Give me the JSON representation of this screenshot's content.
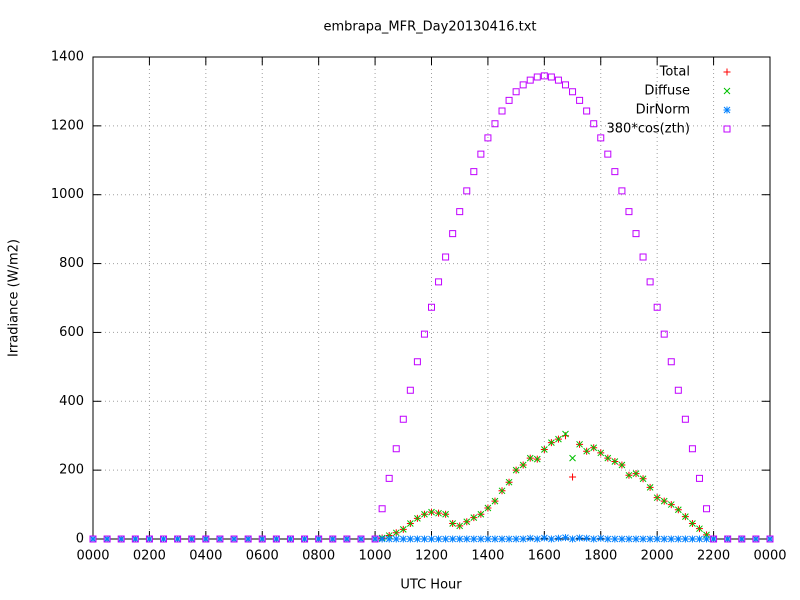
{
  "chart_data": {
    "type": "scatter",
    "title": "embrapa_MFR_Day20130416.txt",
    "x_label": "UTC Hour",
    "y_label": "Irradiance (W/m2)",
    "x": [
      0,
      0.5,
      1,
      1.5,
      2,
      2.5,
      3,
      3.5,
      4,
      4.5,
      5,
      5.5,
      6,
      6.5,
      7,
      7.5,
      8,
      8.5,
      9,
      9.5,
      10,
      10.25,
      10.5,
      10.75,
      11,
      11.25,
      11.5,
      11.75,
      12,
      12.25,
      12.5,
      12.75,
      13,
      13.25,
      13.5,
      13.75,
      14,
      14.25,
      14.5,
      14.75,
      15,
      15.25,
      15.5,
      15.75,
      16,
      16.25,
      16.5,
      16.75,
      17,
      17.25,
      17.5,
      17.75,
      18,
      18.25,
      18.5,
      18.75,
      19,
      19.25,
      19.5,
      19.75,
      20,
      20.25,
      20.5,
      20.75,
      21,
      21.25,
      21.5,
      21.75,
      22,
      22.5,
      23,
      23.5,
      24
    ],
    "series": [
      {
        "name": "Total",
        "color": "#ff0000",
        "marker": "plus",
        "values": [
          0,
          0,
          0,
          0,
          0,
          0,
          0,
          0,
          0,
          0,
          0,
          0,
          0,
          0,
          0,
          0,
          0,
          0,
          0,
          0,
          0,
          3,
          10,
          18,
          28,
          45,
          60,
          72,
          78,
          75,
          72,
          45,
          38,
          50,
          62,
          72,
          90,
          110,
          140,
          165,
          200,
          215,
          235,
          232,
          260,
          280,
          290,
          300,
          180,
          275,
          255,
          265,
          250,
          235,
          225,
          215,
          185,
          190,
          175,
          150,
          120,
          110,
          100,
          85,
          65,
          45,
          30,
          12,
          0,
          0,
          0,
          0,
          0
        ]
      },
      {
        "name": "Diffuse",
        "color": "#00c000",
        "marker": "cross",
        "values": [
          0,
          0,
          0,
          0,
          0,
          0,
          0,
          0,
          0,
          0,
          0,
          0,
          0,
          0,
          0,
          0,
          0,
          0,
          0,
          0,
          0,
          3,
          10,
          18,
          28,
          45,
          60,
          72,
          78,
          75,
          72,
          45,
          38,
          50,
          62,
          72,
          90,
          110,
          140,
          165,
          200,
          215,
          235,
          232,
          260,
          280,
          290,
          305,
          235,
          275,
          255,
          265,
          250,
          235,
          225,
          215,
          185,
          190,
          175,
          150,
          120,
          110,
          100,
          85,
          65,
          45,
          30,
          12,
          0,
          0,
          0,
          0,
          0
        ]
      },
      {
        "name": "DirNorm",
        "color": "#0080ff",
        "marker": "star",
        "values": [
          0,
          0,
          0,
          0,
          0,
          0,
          0,
          0,
          0,
          0,
          0,
          0,
          0,
          0,
          0,
          0,
          0,
          0,
          0,
          0,
          0,
          0,
          0,
          0,
          0,
          0,
          0,
          0,
          0,
          0,
          0,
          0,
          0,
          0,
          0,
          0,
          0,
          0,
          0,
          0,
          0,
          0,
          2,
          0,
          3,
          0,
          2,
          4,
          0,
          3,
          2,
          0,
          2,
          0,
          0,
          0,
          0,
          0,
          0,
          0,
          0,
          0,
          0,
          0,
          0,
          0,
          0,
          0,
          0,
          0,
          0,
          0,
          0
        ]
      },
      {
        "name": "380*cos(zth)",
        "color": "#c000ff",
        "marker": "square",
        "values": [
          0,
          0,
          0,
          0,
          0,
          0,
          0,
          0,
          0,
          0,
          0,
          0,
          0,
          0,
          0,
          0,
          0,
          0,
          0,
          0,
          0,
          88,
          176,
          262,
          348,
          432,
          515,
          595,
          673,
          747,
          819,
          887,
          951,
          1011,
          1067,
          1118,
          1165,
          1206,
          1243,
          1274,
          1299,
          1319,
          1333,
          1342,
          1345,
          1342,
          1333,
          1319,
          1299,
          1274,
          1243,
          1206,
          1165,
          1118,
          1067,
          1011,
          951,
          887,
          819,
          747,
          673,
          595,
          515,
          432,
          348,
          262,
          176,
          88,
          0,
          0,
          0,
          0,
          0
        ]
      }
    ],
    "xlim": [
      0,
      24
    ],
    "xticks": [
      {
        "value": 0,
        "label": "0000"
      },
      {
        "value": 2,
        "label": "0200"
      },
      {
        "value": 4,
        "label": "0400"
      },
      {
        "value": 6,
        "label": "0600"
      },
      {
        "value": 8,
        "label": "0800"
      },
      {
        "value": 10,
        "label": "1000"
      },
      {
        "value": 12,
        "label": "1200"
      },
      {
        "value": 14,
        "label": "1400"
      },
      {
        "value": 16,
        "label": "1600"
      },
      {
        "value": 18,
        "label": "1800"
      },
      {
        "value": 20,
        "label": "2000"
      },
      {
        "value": 22,
        "label": "2200"
      },
      {
        "value": 24,
        "label": "0000"
      }
    ],
    "ylim": [
      0,
      1400
    ],
    "yticks": [
      0,
      200,
      400,
      600,
      800,
      1000,
      1200,
      1400
    ],
    "grid": true,
    "legend": "top-right"
  }
}
